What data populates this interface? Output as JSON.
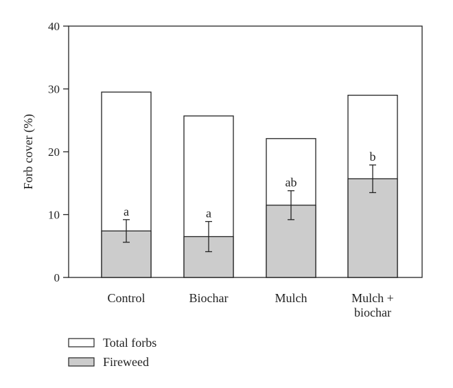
{
  "chart_data": {
    "type": "bar",
    "ylabel": "Forb cover (%)",
    "ylim": [
      0,
      40
    ],
    "yticks": [
      0,
      10,
      20,
      30,
      40
    ],
    "categories": [
      [
        "Control"
      ],
      [
        "Biochar"
      ],
      [
        "Mulch"
      ],
      [
        "Mulch +",
        "biochar"
      ]
    ],
    "series": [
      {
        "name": "Total forbs",
        "values": [
          29.5,
          25.7,
          22.1,
          29.0
        ],
        "color": "#ffffff"
      },
      {
        "name": "Fireweed",
        "values": [
          7.4,
          6.5,
          11.5,
          15.7
        ],
        "color": "#cccccc",
        "error": [
          1.8,
          2.4,
          2.3,
          2.2
        ],
        "significance": [
          "a",
          "a",
          "ab",
          "b"
        ]
      }
    ],
    "legend_position": "bottom-left",
    "grid": false
  }
}
